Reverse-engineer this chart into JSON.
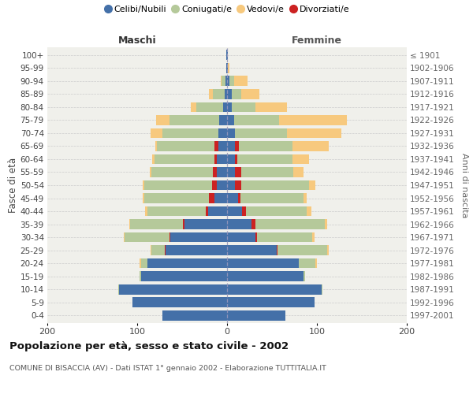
{
  "age_groups": [
    "100+",
    "95-99",
    "90-94",
    "85-89",
    "80-84",
    "75-79",
    "70-74",
    "65-69",
    "60-64",
    "55-59",
    "50-54",
    "45-49",
    "40-44",
    "35-39",
    "30-34",
    "25-29",
    "20-24",
    "15-19",
    "10-14",
    "5-9",
    "0-4"
  ],
  "birth_years": [
    "≤ 1901",
    "1902-1906",
    "1907-1911",
    "1912-1916",
    "1917-1921",
    "1922-1926",
    "1927-1931",
    "1932-1936",
    "1937-1941",
    "1942-1946",
    "1947-1951",
    "1952-1956",
    "1957-1961",
    "1962-1966",
    "1967-1971",
    "1972-1976",
    "1977-1981",
    "1982-1986",
    "1987-1991",
    "1992-1996",
    "1997-2001"
  ],
  "male_celibi": [
    1,
    1,
    2,
    3,
    4,
    9,
    10,
    10,
    11,
    11,
    11,
    14,
    21,
    47,
    63,
    68,
    89,
    96,
    120,
    105,
    72
  ],
  "male_coniugati": [
    0,
    0,
    4,
    13,
    30,
    55,
    62,
    64,
    67,
    68,
    75,
    72,
    65,
    59,
    50,
    15,
    7,
    1,
    1,
    0,
    0
  ],
  "male_vedovi": [
    0,
    0,
    1,
    4,
    6,
    15,
    13,
    2,
    2,
    2,
    2,
    2,
    2,
    1,
    1,
    1,
    1,
    0,
    0,
    0,
    0
  ],
  "male_divorziati": [
    0,
    0,
    0,
    0,
    0,
    0,
    0,
    4,
    3,
    5,
    6,
    6,
    3,
    2,
    1,
    1,
    0,
    0,
    0,
    0,
    0
  ],
  "female_nubili": [
    1,
    1,
    3,
    5,
    5,
    8,
    9,
    9,
    9,
    9,
    9,
    12,
    17,
    27,
    32,
    55,
    80,
    85,
    105,
    97,
    65
  ],
  "female_coniugate": [
    0,
    0,
    5,
    11,
    27,
    50,
    58,
    60,
    62,
    58,
    75,
    70,
    68,
    77,
    62,
    55,
    18,
    2,
    1,
    0,
    0
  ],
  "female_vedove": [
    0,
    2,
    15,
    20,
    35,
    75,
    60,
    40,
    18,
    11,
    7,
    4,
    5,
    2,
    2,
    2,
    2,
    0,
    0,
    0,
    0
  ],
  "female_divorziate": [
    0,
    0,
    0,
    0,
    0,
    0,
    0,
    4,
    2,
    7,
    7,
    3,
    4,
    5,
    1,
    1,
    0,
    0,
    0,
    0,
    0
  ],
  "color_celibi": "#4470a8",
  "color_coniugati": "#b5c99a",
  "color_vedovi": "#f7c97e",
  "color_divorziati": "#cc2222",
  "title": "Popolazione per età, sesso e stato civile - 2002",
  "subtitle": "COMUNE DI BISACCIA (AV) - Dati ISTAT 1° gennaio 2002 - Elaborazione TUTTITALIA.IT",
  "ylabel_left": "Fasce di età",
  "ylabel_right": "Anni di nascita",
  "label_maschi": "Maschi",
  "label_femmine": "Femmine",
  "legend_labels": [
    "Celibi/Nubili",
    "Coniugati/e",
    "Vedovi/e",
    "Divorziati/e"
  ],
  "xlim": 200,
  "bg_axes": "#f0f0eb",
  "bg_fig": "#ffffff",
  "grid_color": "#cccccc"
}
